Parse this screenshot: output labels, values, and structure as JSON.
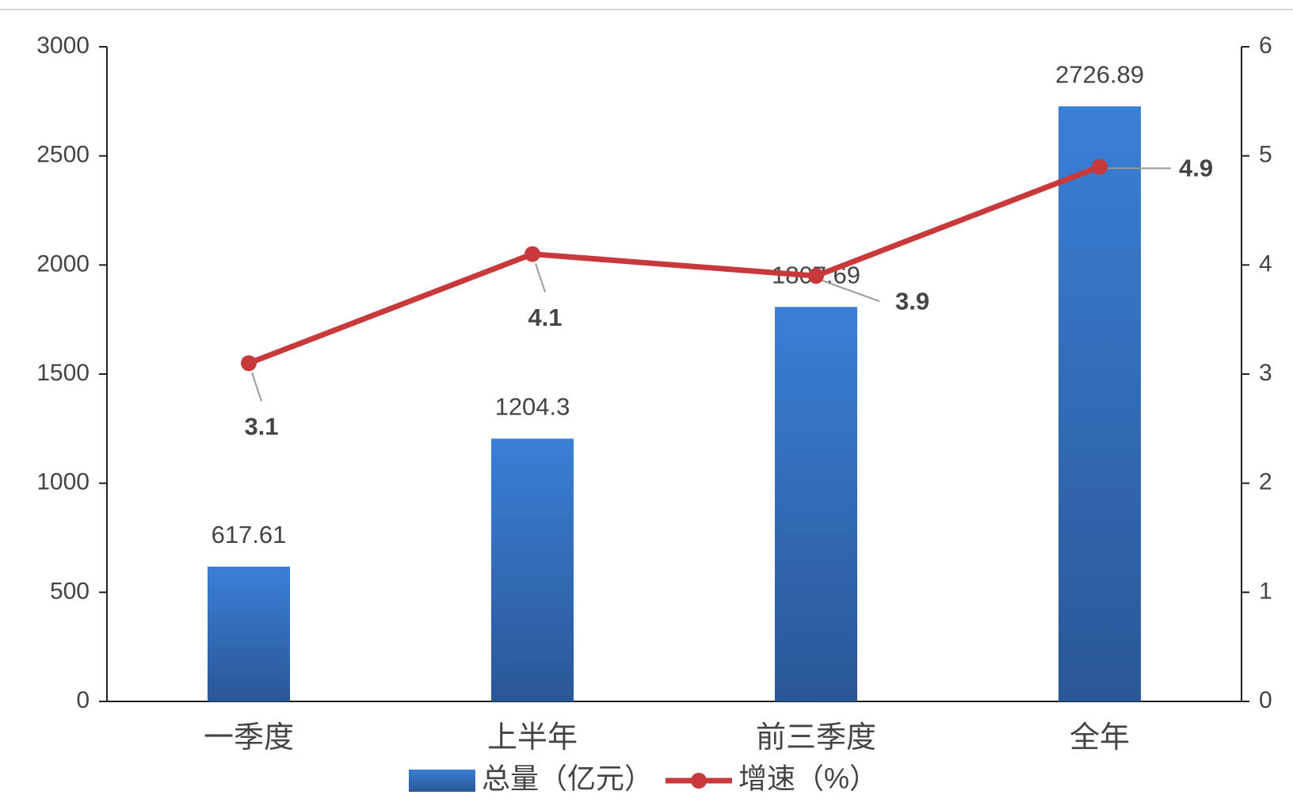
{
  "chart_data": {
    "type": "combo",
    "categories": [
      "一季度",
      "上半年",
      "前三季度",
      "全年"
    ],
    "series": [
      {
        "name": "总量（亿元）",
        "type": "bar",
        "color": "#2f6bbf",
        "values": [
          617.61,
          1204.3,
          1807.69,
          2726.89
        ]
      },
      {
        "name": "增速（%）",
        "type": "line",
        "color": "#c8393b",
        "axis": "y2",
        "values": [
          3.1,
          4.1,
          3.9,
          4.9
        ]
      }
    ],
    "ylim": [
      0,
      3000
    ],
    "yticks": [
      0,
      500,
      1000,
      1500,
      2000,
      2500,
      3000
    ],
    "y2lim": [
      0,
      6
    ],
    "y2ticks": [
      0,
      1,
      2,
      3,
      4,
      5,
      6
    ],
    "grid": false,
    "legend": "bottom"
  }
}
